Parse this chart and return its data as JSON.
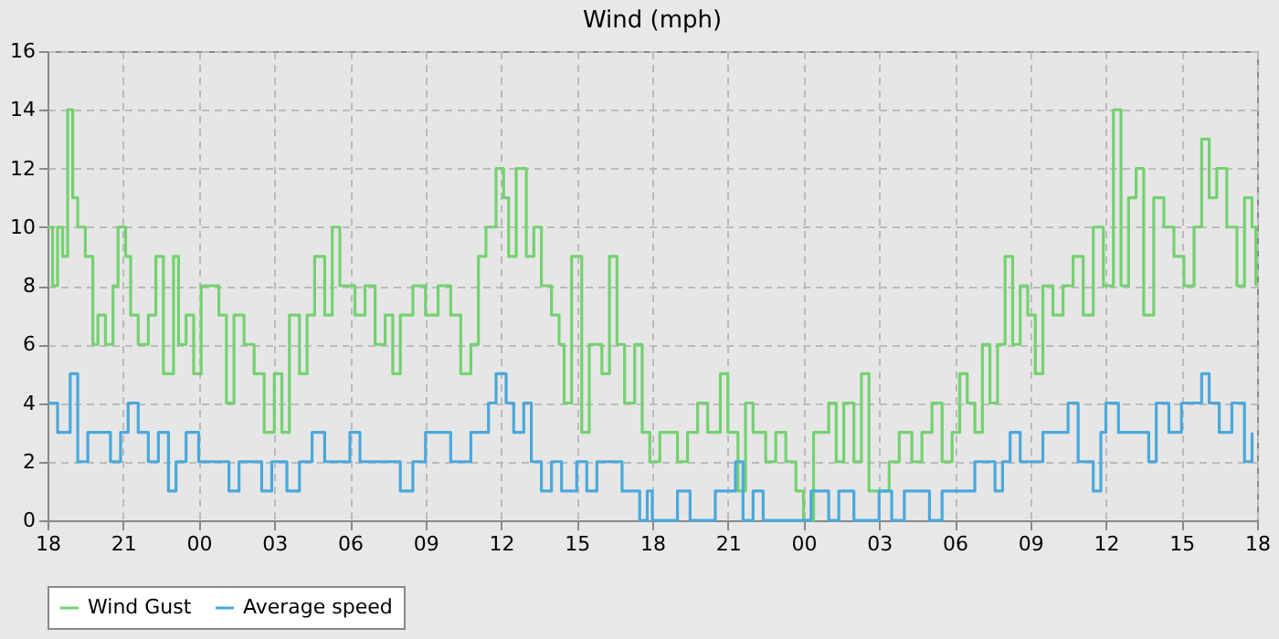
{
  "chart_data": {
    "type": "step",
    "title": "Wind (mph)",
    "legend": "bottom",
    "grid": true,
    "line_style": "solid",
    "xlim": [
      18,
      66
    ],
    "ylim": [
      0,
      16
    ],
    "yticks": [
      0,
      2,
      4,
      6,
      8,
      10,
      12,
      14,
      16
    ],
    "xticks": [
      18,
      21,
      {
        "value": 24,
        "label": "00"
      },
      {
        "value": 27,
        "label": "03"
      },
      {
        "value": 30,
        "label": "06"
      },
      {
        "value": 33,
        "label": "09"
      },
      {
        "value": 36,
        "label": "12"
      },
      {
        "value": 39,
        "label": "15"
      },
      {
        "value": 42,
        "label": "18"
      },
      {
        "value": 45,
        "label": "21"
      },
      {
        "value": 48,
        "label": "00"
      },
      {
        "value": 51,
        "label": "03"
      },
      {
        "value": 54,
        "label": "06"
      },
      {
        "value": 57,
        "label": "09"
      },
      {
        "value": 60,
        "label": "12"
      },
      {
        "value": 63,
        "label": "15"
      },
      {
        "value": 66,
        "label": "18"
      }
    ],
    "series": [
      {
        "name": "Wind Gust",
        "color": "#73d26f",
        "x": [
          18,
          18.2,
          18.4,
          18.6,
          18.8,
          19.0,
          19.2,
          19.5,
          19.8,
          20.0,
          20.3,
          20.6,
          20.8,
          21.1,
          21.3,
          21.6,
          22.0,
          22.3,
          22.6,
          23.0,
          23.2,
          23.5,
          23.8,
          24.1,
          24.8,
          25.1,
          25.4,
          25.8,
          26.2,
          26.6,
          27.0,
          27.3,
          27.6,
          28.0,
          28.3,
          28.6,
          29.0,
          29.3,
          29.6,
          30.2,
          30.6,
          31.0,
          31.4,
          31.7,
          32.0,
          32.5,
          33.0,
          33.5,
          34.0,
          34.4,
          34.8,
          35.1,
          35.4,
          35.8,
          36.1,
          36.3,
          36.6,
          37.0,
          37.3,
          37.6,
          38.0,
          38.3,
          38.5,
          38.8,
          39.2,
          39.5,
          40.0,
          40.3,
          40.6,
          40.9,
          41.3,
          41.6,
          41.9,
          42.3,
          43.0,
          43.4,
          43.8,
          44.2,
          44.7,
          45.0,
          45.4,
          45.7,
          46.0,
          46.5,
          46.9,
          47.3,
          47.7,
          48.0,
          48.4,
          49.0,
          49.3,
          49.6,
          50.0,
          50.3,
          50.6,
          51.0,
          51.4,
          51.8,
          52.3,
          52.7,
          53.1,
          53.5,
          53.9,
          54.2,
          54.5,
          54.8,
          55.1,
          55.4,
          55.7,
          56.0,
          56.3,
          56.6,
          56.9,
          57.2,
          57.5,
          57.9,
          58.3,
          58.7,
          59.1,
          59.5,
          59.9,
          60.3,
          60.6,
          60.9,
          61.2,
          61.5,
          61.9,
          62.3,
          62.7,
          63.1,
          63.5,
          63.8,
          64.1,
          64.4,
          64.8,
          65.2,
          65.5,
          65.8,
          65.95
        ],
        "values": [
          10,
          8,
          10,
          9,
          14,
          11,
          10,
          9,
          6,
          7,
          6,
          8,
          10,
          9,
          7,
          6,
          7,
          9,
          5,
          9,
          6,
          7,
          5,
          8,
          7,
          4,
          7,
          6,
          5,
          3,
          5,
          3,
          7,
          5,
          7,
          9,
          7,
          10,
          8,
          7,
          8,
          6,
          7,
          5,
          7,
          8,
          7,
          8,
          7,
          5,
          6,
          9,
          10,
          12,
          11,
          9,
          12,
          9,
          10,
          8,
          7,
          6,
          4,
          9,
          3,
          6,
          5,
          9,
          6,
          4,
          6,
          3,
          2,
          3,
          2,
          3,
          4,
          3,
          5,
          3,
          1,
          4,
          3,
          2,
          3,
          2,
          1,
          0,
          3,
          4,
          2,
          4,
          2,
          5,
          1,
          1,
          2,
          3,
          2,
          3,
          4,
          2,
          3,
          5,
          4,
          3,
          6,
          4,
          6,
          9,
          6,
          8,
          7,
          5,
          8,
          7,
          8,
          9,
          7,
          10,
          8,
          14,
          8,
          11,
          12,
          7,
          11,
          10,
          9,
          8,
          10,
          13,
          11,
          12,
          10,
          8,
          11,
          10,
          8
        ]
      },
      {
        "name": "Average speed",
        "color": "#4aa8dc",
        "x": [
          18,
          18.4,
          18.9,
          19.2,
          19.6,
          20.5,
          20.9,
          21.2,
          21.6,
          22.0,
          22.4,
          22.8,
          23.1,
          23.5,
          24.0,
          25.2,
          25.6,
          26.5,
          26.9,
          27.5,
          28.0,
          28.5,
          29.0,
          30.0,
          30.4,
          32.0,
          32.5,
          33.0,
          34.0,
          34.8,
          35.5,
          35.8,
          36.2,
          36.5,
          36.9,
          37.2,
          37.6,
          38.0,
          38.4,
          39.0,
          39.4,
          39.8,
          40.8,
          41.5,
          41.8,
          42.0,
          43.0,
          43.5,
          44.5,
          45.3,
          45.6,
          46.0,
          46.4,
          48.3,
          49.0,
          49.4,
          50.0,
          51.0,
          51.5,
          52.0,
          53.0,
          53.5,
          54.8,
          55.6,
          55.9,
          56.2,
          56.6,
          57.5,
          58.5,
          58.9,
          59.5,
          59.8,
          60.0,
          60.5,
          61.7,
          62.0,
          62.5,
          63.0,
          63.8,
          64.1,
          64.5,
          65.0,
          65.5,
          65.8
        ],
        "values": [
          4,
          3,
          5,
          2,
          3,
          2,
          3,
          4,
          3,
          2,
          3,
          1,
          2,
          3,
          2,
          1,
          2,
          1,
          2,
          1,
          2,
          3,
          2,
          3,
          2,
          1,
          2,
          3,
          2,
          3,
          4,
          5,
          4,
          3,
          4,
          2,
          1,
          2,
          1,
          2,
          1,
          2,
          1,
          0,
          1,
          0,
          1,
          0,
          1,
          2,
          0,
          1,
          0,
          1,
          0,
          1,
          0,
          1,
          0,
          1,
          0,
          1,
          2,
          1,
          2,
          3,
          2,
          3,
          4,
          2,
          1,
          3,
          4,
          3,
          2,
          4,
          3,
          4,
          5,
          4,
          3,
          4,
          2,
          3
        ]
      }
    ]
  }
}
